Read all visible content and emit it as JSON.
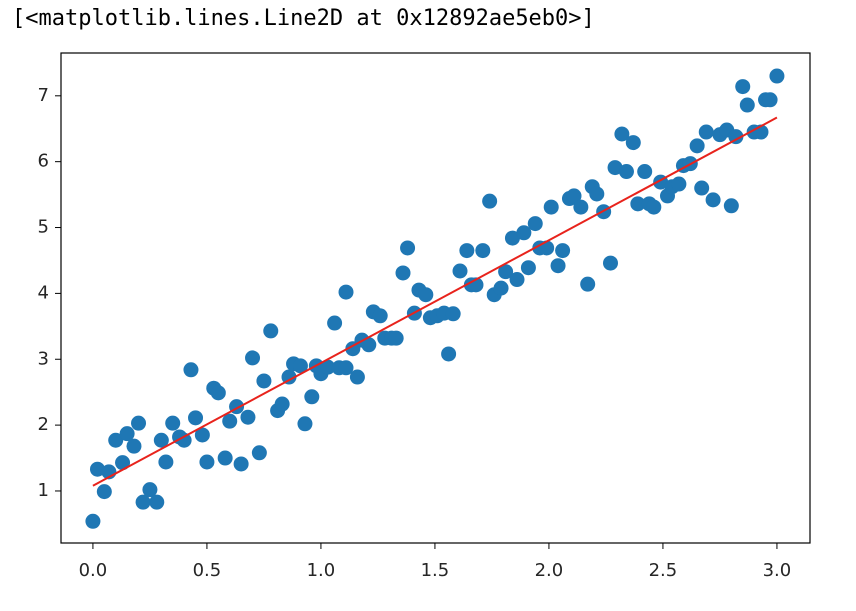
{
  "output_text": "[<matplotlib.lines.Line2D at 0x12892ae5eb0>]",
  "chart_data": {
    "type": "scatter",
    "color": "#1f77b4",
    "x": [
      0.0,
      0.02,
      0.05,
      0.07,
      0.1,
      0.13,
      0.15,
      0.18,
      0.2,
      0.22,
      0.25,
      0.28,
      0.3,
      0.32,
      0.35,
      0.38,
      0.4,
      0.43,
      0.45,
      0.48,
      0.5,
      0.53,
      0.55,
      0.58,
      0.6,
      0.63,
      0.65,
      0.68,
      0.7,
      0.73,
      0.75,
      0.78,
      0.81,
      0.83,
      0.86,
      0.88,
      0.91,
      0.93,
      0.96,
      0.98,
      1.0,
      1.03,
      1.06,
      1.08,
      1.11,
      1.11,
      1.14,
      1.16,
      1.18,
      1.21,
      1.23,
      1.26,
      1.28,
      1.31,
      1.33,
      1.36,
      1.38,
      1.41,
      1.43,
      1.46,
      1.48,
      1.51,
      1.54,
      1.56,
      1.58,
      1.61,
      1.64,
      1.66,
      1.68,
      1.71,
      1.74,
      1.76,
      1.79,
      1.81,
      1.84,
      1.86,
      1.89,
      1.91,
      1.94,
      1.96,
      1.99,
      2.01,
      2.04,
      2.06,
      2.09,
      2.11,
      2.14,
      2.17,
      2.19,
      2.21,
      2.24,
      2.27,
      2.29,
      2.32,
      2.34,
      2.37,
      2.39,
      2.42,
      2.44,
      2.46,
      2.49,
      2.52,
      2.54,
      2.57,
      2.59,
      2.62,
      2.65,
      2.67,
      2.69,
      2.72,
      2.75,
      2.78,
      2.8,
      2.82,
      2.85,
      2.87,
      2.9,
      2.93,
      2.95,
      2.97,
      3.0
    ],
    "values": [
      0.54,
      1.33,
      0.99,
      1.29,
      1.77,
      1.43,
      1.87,
      1.68,
      2.03,
      0.83,
      1.02,
      0.83,
      1.77,
      1.44,
      2.03,
      1.82,
      1.77,
      2.84,
      2.11,
      1.85,
      1.44,
      2.56,
      2.49,
      1.5,
      2.06,
      2.28,
      1.41,
      2.12,
      3.02,
      1.58,
      2.67,
      3.43,
      2.22,
      2.32,
      2.73,
      2.93,
      2.9,
      2.02,
      2.43,
      2.9,
      2.78,
      2.88,
      3.55,
      2.87,
      2.87,
      4.02,
      3.16,
      2.73,
      3.29,
      3.22,
      3.72,
      3.66,
      3.32,
      3.32,
      3.32,
      4.31,
      4.69,
      3.7,
      4.05,
      3.98,
      3.63,
      3.66,
      3.7,
      3.08,
      3.69,
      4.34,
      4.65,
      4.13,
      4.13,
      4.65,
      5.4,
      3.98,
      4.08,
      4.33,
      4.84,
      4.21,
      4.92,
      4.39,
      5.06,
      4.69,
      4.69,
      5.31,
      4.42,
      4.65,
      5.44,
      5.48,
      5.31,
      4.14,
      5.62,
      5.51,
      5.24,
      4.46,
      5.91,
      6.42,
      5.85,
      6.29,
      5.36,
      5.85,
      5.36,
      5.31,
      5.69,
      5.48,
      5.62,
      5.66,
      5.94,
      5.97,
      6.24,
      5.6,
      6.45,
      5.42,
      6.41,
      6.48,
      5.33,
      6.38,
      7.14,
      6.86,
      6.45,
      6.45,
      6.94,
      6.94,
      7.3
    ],
    "fit": {
      "type": "line",
      "color": "#e8231c",
      "x": [
        0,
        3
      ],
      "values": [
        1.08,
        6.67
      ]
    },
    "xlim": [
      -0.14,
      3.145
    ],
    "ylim": [
      0.21,
      7.65
    ],
    "xticks": [
      {
        "value": 0,
        "label": "0.0"
      },
      {
        "value": 0.5,
        "label": "0.5"
      },
      {
        "value": 1,
        "label": "1.0"
      },
      {
        "value": 1.5,
        "label": "1.5"
      },
      {
        "value": 2,
        "label": "2.0"
      },
      {
        "value": 2.5,
        "label": "2.5"
      },
      {
        "value": 3,
        "label": "3.0"
      }
    ],
    "yticks": [
      1,
      2,
      3,
      4,
      5,
      6,
      7
    ]
  }
}
